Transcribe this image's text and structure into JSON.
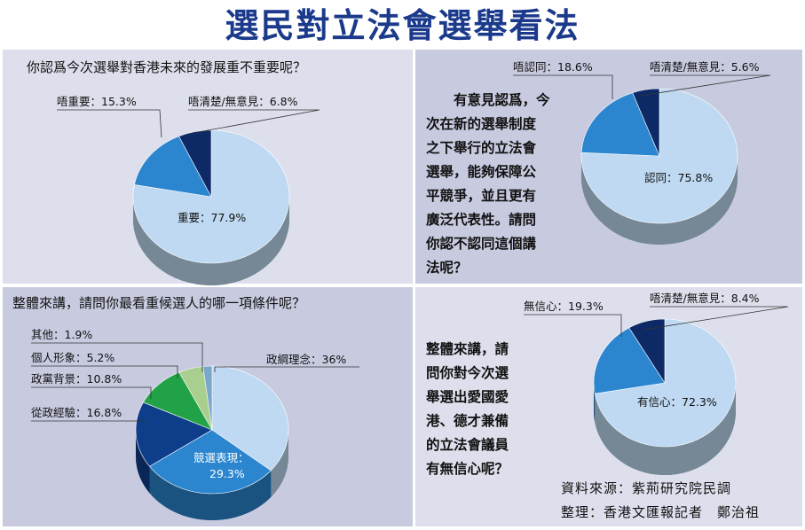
{
  "title": "選民對立法會選舉看法",
  "source": {
    "line1": "資料來源：紫荊研究院民調",
    "line2": "整理：香港文匯報記者　鄭治祖"
  },
  "chart_data": [
    {
      "type": "pie",
      "title": "你認爲今次選舉對香港未來的發展重不重要呢？",
      "slices": [
        {
          "label": "重要：77.9%",
          "value": 77.9,
          "color": "#bfd9f2"
        },
        {
          "label": "唔重要：15.3%",
          "value": 15.3,
          "color": "#2b86cf"
        },
        {
          "label": "唔清楚/無意見：6.8%",
          "value": 6.8,
          "color": "#0e2a66"
        }
      ]
    },
    {
      "type": "pie",
      "title": "有意見認爲，今次在新的選舉制度之下舉行的立法會選舉，能夠保障公平競爭，並且更有廣泛代表性。請問你認不認同這個講法呢？",
      "title_lines": [
        "有意見認爲，今",
        "次在新的選舉制度",
        "之下舉行的立法會",
        "選舉，能夠保障公",
        "平競爭，並且更有",
        "廣泛代表性。請問",
        "你認不認同這個講",
        "法呢？"
      ],
      "slices": [
        {
          "label": "認同：75.8%",
          "value": 75.8,
          "color": "#bfd9f2"
        },
        {
          "label": "唔認同：18.6%",
          "value": 18.6,
          "color": "#2b86cf"
        },
        {
          "label": "唔清楚/無意見：5.6%",
          "value": 5.6,
          "color": "#0e2a66"
        }
      ]
    },
    {
      "type": "pie",
      "title": "整體來講，請問你最看重候選人的哪一項條件呢？",
      "slices": [
        {
          "label": "政綱理念：36%",
          "value": 36,
          "color": "#bfd9f2"
        },
        {
          "label": "競選表現：29.3%",
          "value": 29.3,
          "color": "#2b86cf"
        },
        {
          "label": "從政經驗：16.8%",
          "value": 16.8,
          "color": "#0e3d8a"
        },
        {
          "label": "政黨背景：10.8%",
          "value": 10.8,
          "color": "#22a247"
        },
        {
          "label": "個人形象：5.2%",
          "value": 5.2,
          "color": "#a9cf8e"
        },
        {
          "label": "其他：1.9%",
          "value": 1.9,
          "color": "#7aa7c9"
        }
      ]
    },
    {
      "type": "pie",
      "title": "整體來講，請問你對今次選舉選出愛國愛港、德才兼備的立法會議員有無信心呢？",
      "title_lines": [
        "整體來講，請",
        "問你對今次選",
        "舉選出愛國愛",
        "港、德才兼備",
        "的立法會議員",
        "有無信心呢？"
      ],
      "slices": [
        {
          "label": "有信心：72.3%",
          "value": 72.3,
          "color": "#bfd9f2"
        },
        {
          "label": "無信心：19.3%",
          "value": 19.3,
          "color": "#2b86cf"
        },
        {
          "label": "唔清楚/無意見：8.4%",
          "value": 8.4,
          "color": "#0e2a66"
        }
      ]
    }
  ]
}
